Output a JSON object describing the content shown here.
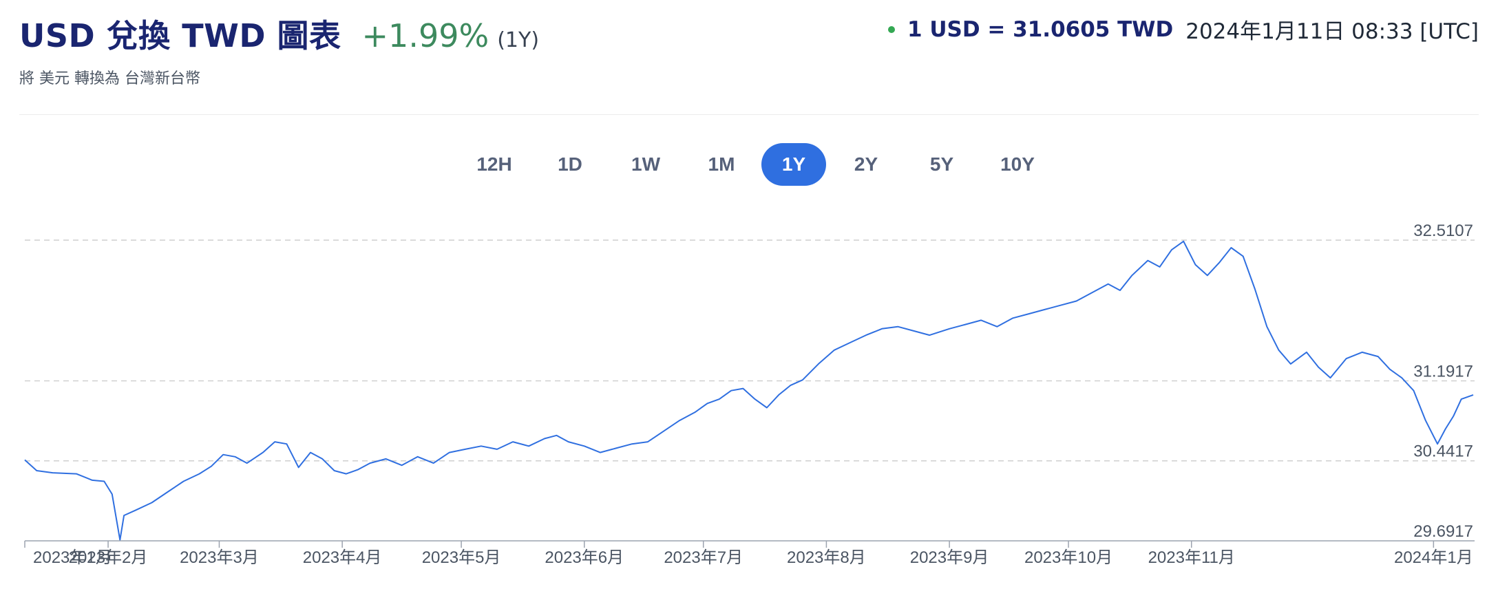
{
  "header": {
    "title": "USD 兌換 TWD 圖表",
    "change": "+1.99%",
    "period": "(1Y)",
    "subtitle": "將 美元 轉換為 台灣新台幣",
    "rate": "1 USD = 31.0605 TWD",
    "timestamp": "2024年1月11日 08:33 [UTC]"
  },
  "ranges": [
    "12H",
    "1D",
    "1W",
    "1M",
    "1Y",
    "2Y",
    "5Y",
    "10Y"
  ],
  "active_range": "1Y",
  "colors": {
    "line": "#2f6fe0",
    "accent": "#2f6fe0",
    "positive": "#3d8a5e",
    "title": "#1a2570",
    "live_dot": "#34a853"
  },
  "chart_data": {
    "type": "line",
    "y_ticks": [
      "32.5107",
      "31.1917",
      "30.4417",
      "29.6917"
    ],
    "ylim": [
      29.6917,
      32.5107
    ],
    "x_ticks": [
      "2023年1月",
      "2023年2月",
      "2023年3月",
      "2023年4月",
      "2023年5月",
      "2023年6月",
      "2023年7月",
      "2023年8月",
      "2023年9月",
      "2023年10月",
      "2023年11月",
      "2024年1月"
    ],
    "grid": true,
    "series": [
      {
        "points": [
          [
            "2023-01-11",
            30.45
          ],
          [
            "2023-01-14",
            30.35
          ],
          [
            "2023-01-18",
            30.33
          ],
          [
            "2023-01-24",
            30.32
          ],
          [
            "2023-01-28",
            30.26
          ],
          [
            "2023-01-31",
            30.25
          ],
          [
            "2023-02-02",
            30.13
          ],
          [
            "2023-02-04",
            29.7
          ],
          [
            "2023-02-05",
            29.93
          ],
          [
            "2023-02-08",
            29.98
          ],
          [
            "2023-02-12",
            30.05
          ],
          [
            "2023-02-16",
            30.15
          ],
          [
            "2023-02-20",
            30.25
          ],
          [
            "2023-02-24",
            30.32
          ],
          [
            "2023-02-27",
            30.39
          ],
          [
            "2023-03-02",
            30.5
          ],
          [
            "2023-03-05",
            30.48
          ],
          [
            "2023-03-08",
            30.42
          ],
          [
            "2023-03-12",
            30.52
          ],
          [
            "2023-03-15",
            30.62
          ],
          [
            "2023-03-18",
            30.6
          ],
          [
            "2023-03-21",
            30.38
          ],
          [
            "2023-03-24",
            30.52
          ],
          [
            "2023-03-27",
            30.46
          ],
          [
            "2023-03-30",
            30.35
          ],
          [
            "2023-04-02",
            30.32
          ],
          [
            "2023-04-05",
            30.36
          ],
          [
            "2023-04-08",
            30.42
          ],
          [
            "2023-04-12",
            30.46
          ],
          [
            "2023-04-16",
            30.4
          ],
          [
            "2023-04-20",
            30.48
          ],
          [
            "2023-04-24",
            30.42
          ],
          [
            "2023-04-28",
            30.52
          ],
          [
            "2023-05-02",
            30.55
          ],
          [
            "2023-05-06",
            30.58
          ],
          [
            "2023-05-10",
            30.55
          ],
          [
            "2023-05-14",
            30.62
          ],
          [
            "2023-05-18",
            30.58
          ],
          [
            "2023-05-22",
            30.65
          ],
          [
            "2023-05-25",
            30.68
          ],
          [
            "2023-05-28",
            30.62
          ],
          [
            "2023-06-01",
            30.58
          ],
          [
            "2023-06-05",
            30.52
          ],
          [
            "2023-06-09",
            30.56
          ],
          [
            "2023-06-13",
            30.6
          ],
          [
            "2023-06-17",
            30.62
          ],
          [
            "2023-06-21",
            30.72
          ],
          [
            "2023-06-25",
            30.82
          ],
          [
            "2023-06-29",
            30.9
          ],
          [
            "2023-07-02",
            30.98
          ],
          [
            "2023-07-05",
            31.02
          ],
          [
            "2023-07-08",
            31.1
          ],
          [
            "2023-07-11",
            31.12
          ],
          [
            "2023-07-14",
            31.02
          ],
          [
            "2023-07-17",
            30.94
          ],
          [
            "2023-07-20",
            31.06
          ],
          [
            "2023-07-23",
            31.15
          ],
          [
            "2023-07-26",
            31.2
          ],
          [
            "2023-07-30",
            31.35
          ],
          [
            "2023-08-03",
            31.48
          ],
          [
            "2023-08-07",
            31.55
          ],
          [
            "2023-08-11",
            31.62
          ],
          [
            "2023-08-15",
            31.68
          ],
          [
            "2023-08-19",
            31.7
          ],
          [
            "2023-08-23",
            31.66
          ],
          [
            "2023-08-27",
            31.62
          ],
          [
            "2023-09-01",
            31.68
          ],
          [
            "2023-09-05",
            31.72
          ],
          [
            "2023-09-09",
            31.76
          ],
          [
            "2023-09-13",
            31.7
          ],
          [
            "2023-09-17",
            31.78
          ],
          [
            "2023-09-21",
            31.82
          ],
          [
            "2023-09-25",
            31.86
          ],
          [
            "2023-09-29",
            31.9
          ],
          [
            "2023-10-03",
            31.94
          ],
          [
            "2023-10-07",
            32.02
          ],
          [
            "2023-10-11",
            32.1
          ],
          [
            "2023-10-14",
            32.04
          ],
          [
            "2023-10-17",
            32.18
          ],
          [
            "2023-10-21",
            32.32
          ],
          [
            "2023-10-24",
            32.26
          ],
          [
            "2023-10-27",
            32.42
          ],
          [
            "2023-10-30",
            32.5
          ],
          [
            "2023-11-02",
            32.28
          ],
          [
            "2023-11-05",
            32.18
          ],
          [
            "2023-11-08",
            32.3
          ],
          [
            "2023-11-11",
            32.44
          ],
          [
            "2023-11-14",
            32.36
          ],
          [
            "2023-11-17",
            32.05
          ],
          [
            "2023-11-20",
            31.7
          ],
          [
            "2023-11-23",
            31.48
          ],
          [
            "2023-11-26",
            31.35
          ],
          [
            "2023-11-30",
            31.46
          ],
          [
            "2023-12-03",
            31.32
          ],
          [
            "2023-12-06",
            31.22
          ],
          [
            "2023-12-10",
            31.4
          ],
          [
            "2023-12-14",
            31.46
          ],
          [
            "2023-12-18",
            31.42
          ],
          [
            "2023-12-21",
            31.3
          ],
          [
            "2023-12-24",
            31.22
          ],
          [
            "2023-12-27",
            31.1
          ],
          [
            "2023-12-30",
            30.82
          ],
          [
            "2024-01-02",
            30.6
          ],
          [
            "2024-01-04",
            30.74
          ],
          [
            "2024-01-06",
            30.86
          ],
          [
            "2024-01-08",
            31.02
          ],
          [
            "2024-01-11",
            31.06
          ]
        ]
      }
    ]
  }
}
